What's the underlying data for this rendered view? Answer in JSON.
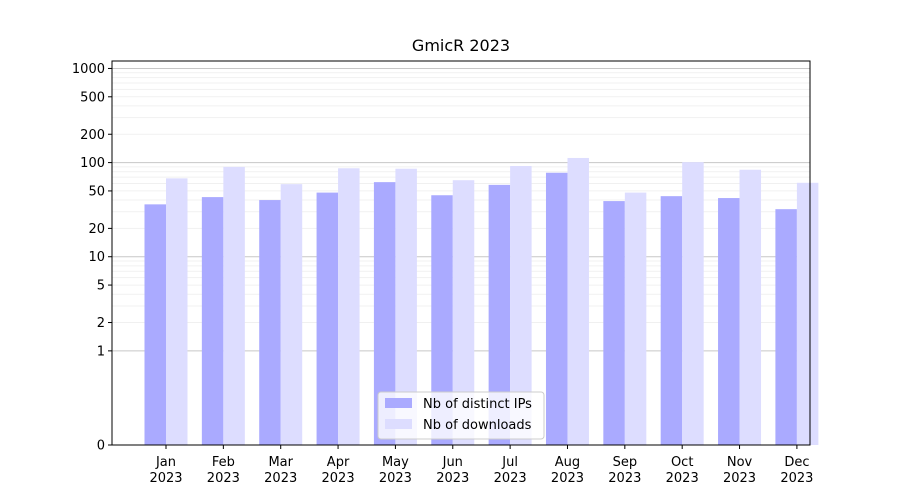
{
  "chart_data": {
    "type": "bar",
    "title": "GmicR 2023",
    "xlabel": "",
    "ylabel": "",
    "y_scale": "symlog",
    "ylim": [
      0,
      1200
    ],
    "grid": "y-major-and-minor",
    "legend_placement": "bottom-center",
    "categories": [
      "Jan\n2023",
      "Feb\n2023",
      "Mar\n2023",
      "Apr\n2023",
      "May\n2023",
      "Jun\n2023",
      "Jul\n2023",
      "Aug\n2023",
      "Sep\n2023",
      "Oct\n2023",
      "Nov\n2023",
      "Dec\n2023"
    ],
    "y_ticks": [
      {
        "value": 0,
        "label": "0"
      },
      {
        "value": 1,
        "label": "1"
      },
      {
        "value": 2,
        "label": "2"
      },
      {
        "value": 5,
        "label": "5"
      },
      {
        "value": 10,
        "label": "10"
      },
      {
        "value": 20,
        "label": "20"
      },
      {
        "value": 50,
        "label": "50"
      },
      {
        "value": 100,
        "label": "100"
      },
      {
        "value": 200,
        "label": "200"
      },
      {
        "value": 500,
        "label": "500"
      },
      {
        "value": 1000,
        "label": "1000"
      }
    ],
    "series": [
      {
        "name": "Nb of distinct IPs",
        "color": "#aaaaff",
        "values": [
          36,
          43,
          40,
          48,
          62,
          45,
          58,
          78,
          39,
          44,
          42,
          32
        ]
      },
      {
        "name": "Nb of downloads",
        "color": "#ddddff",
        "values": [
          68,
          90,
          59,
          87,
          86,
          65,
          92,
          112,
          48,
          101,
          84,
          61
        ]
      }
    ]
  }
}
